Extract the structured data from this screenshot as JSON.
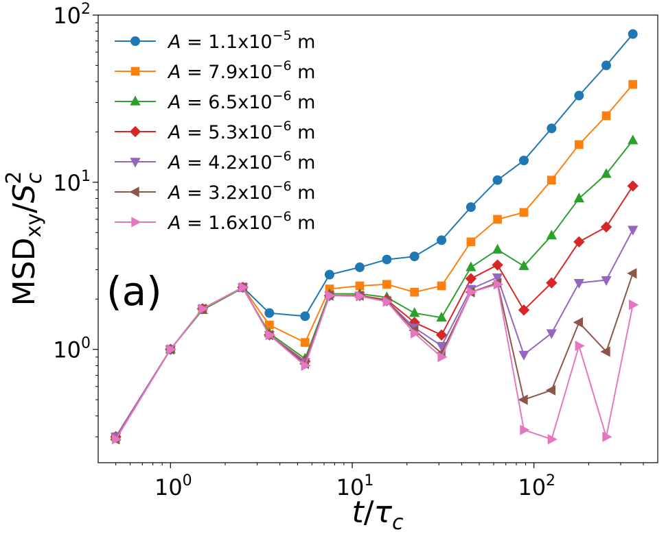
{
  "chart_data": {
    "type": "line",
    "scale": {
      "x": "log",
      "y": "log"
    },
    "xlim": [
      0.4,
      480
    ],
    "ylim": [
      0.21,
      100
    ],
    "xlabel": "t/τc",
    "ylabel": "MSDxy/Sc²",
    "xlabel_parts": {
      "t": "t",
      "slash": "/",
      "tau": "τ",
      "sub": "c"
    },
    "ylabel_parts": {
      "main": "MSD",
      "sub": "xy",
      "slash": "/",
      "s": "S",
      "s_sub": "c",
      "s_sup": "2"
    },
    "panel_label": "(a)",
    "x_ticks": [
      {
        "base": "10",
        "exp": "0",
        "value": 1
      },
      {
        "base": "10",
        "exp": "1",
        "value": 10
      },
      {
        "base": "10",
        "exp": "2",
        "value": 100
      }
    ],
    "y_ticks": [
      {
        "base": "10",
        "exp": "0",
        "value": 1
      },
      {
        "base": "10",
        "exp": "1",
        "value": 10
      },
      {
        "base": "10",
        "exp": "2",
        "value": 100
      }
    ],
    "x": [
      0.5,
      1.0,
      1.5,
      2.5,
      3.5,
      5.5,
      7.5,
      11,
      15.5,
      22,
      31,
      45,
      63,
      88,
      125,
      177,
      250,
      350
    ],
    "series": [
      {
        "name": "A = 1.1x10⁻⁵ m",
        "lhs": "A",
        "mantissa": "1.1x10",
        "exp": "−5",
        "unit": "m",
        "color": "#1f77b4",
        "marker": "circle",
        "values": [
          0.3,
          1.0,
          1.75,
          2.35,
          1.65,
          1.58,
          2.8,
          3.1,
          3.45,
          3.6,
          4.5,
          7.1,
          10.3,
          13.5,
          21,
          33,
          50,
          77
        ]
      },
      {
        "name": "A = 7.9x10⁻⁶ m",
        "lhs": "A",
        "mantissa": "7.9x10",
        "exp": "−6",
        "unit": "m",
        "color": "#ff7f0e",
        "marker": "square",
        "values": [
          0.3,
          1.0,
          1.75,
          2.35,
          1.4,
          1.1,
          2.3,
          2.4,
          2.45,
          2.2,
          2.4,
          4.4,
          6.0,
          6.6,
          10.3,
          16.8,
          25,
          38.5
        ]
      },
      {
        "name": "A = 6.5x10⁻⁶ m",
        "lhs": "A",
        "mantissa": "6.5x10",
        "exp": "−6",
        "unit": "m",
        "color": "#2ca02c",
        "marker": "triangle-up",
        "values": [
          0.3,
          1.0,
          1.72,
          2.33,
          1.25,
          0.88,
          2.15,
          2.15,
          2.05,
          1.65,
          1.55,
          3.1,
          3.95,
          3.15,
          4.8,
          8.0,
          11.2,
          17.8
        ]
      },
      {
        "name": "A = 5.3x10⁻⁶ m",
        "lhs": "A",
        "mantissa": "5.3x10",
        "exp": "−6",
        "unit": "m",
        "color": "#d62728",
        "marker": "diamond",
        "values": [
          0.3,
          1.0,
          1.75,
          2.35,
          1.22,
          0.85,
          2.1,
          2.1,
          1.98,
          1.45,
          1.22,
          2.65,
          3.2,
          1.72,
          2.5,
          4.4,
          5.4,
          9.5
        ]
      },
      {
        "name": "A = 4.2x10⁻⁶ m",
        "lhs": "A",
        "mantissa": "4.2x10",
        "exp": "−6",
        "unit": "m",
        "color": "#9467bd",
        "marker": "triangle-down",
        "values": [
          0.3,
          1.0,
          1.75,
          2.35,
          1.22,
          0.84,
          2.1,
          2.1,
          1.95,
          1.35,
          1.05,
          2.3,
          2.7,
          0.93,
          1.25,
          2.5,
          2.6,
          5.2
        ]
      },
      {
        "name": "A = 3.2x10⁻⁶ m",
        "lhs": "A",
        "mantissa": "3.2x10",
        "exp": "−6",
        "unit": "m",
        "color": "#8c564b",
        "marker": "triangle-left",
        "values": [
          0.29,
          1.0,
          1.75,
          2.35,
          1.22,
          0.82,
          2.1,
          2.1,
          1.95,
          1.3,
          0.95,
          2.2,
          2.5,
          0.5,
          0.57,
          1.45,
          0.97,
          2.85
        ]
      },
      {
        "name": "A = 1.6x10⁻⁶ m",
        "lhs": "A",
        "mantissa": "1.6x10",
        "exp": "−6",
        "unit": "m",
        "color": "#e377c2",
        "marker": "triangle-right",
        "values": [
          0.29,
          1.0,
          1.75,
          2.35,
          1.22,
          0.8,
          2.1,
          2.08,
          1.93,
          1.25,
          0.9,
          2.2,
          2.45,
          0.33,
          0.29,
          1.05,
          0.3,
          1.85
        ]
      }
    ]
  }
}
